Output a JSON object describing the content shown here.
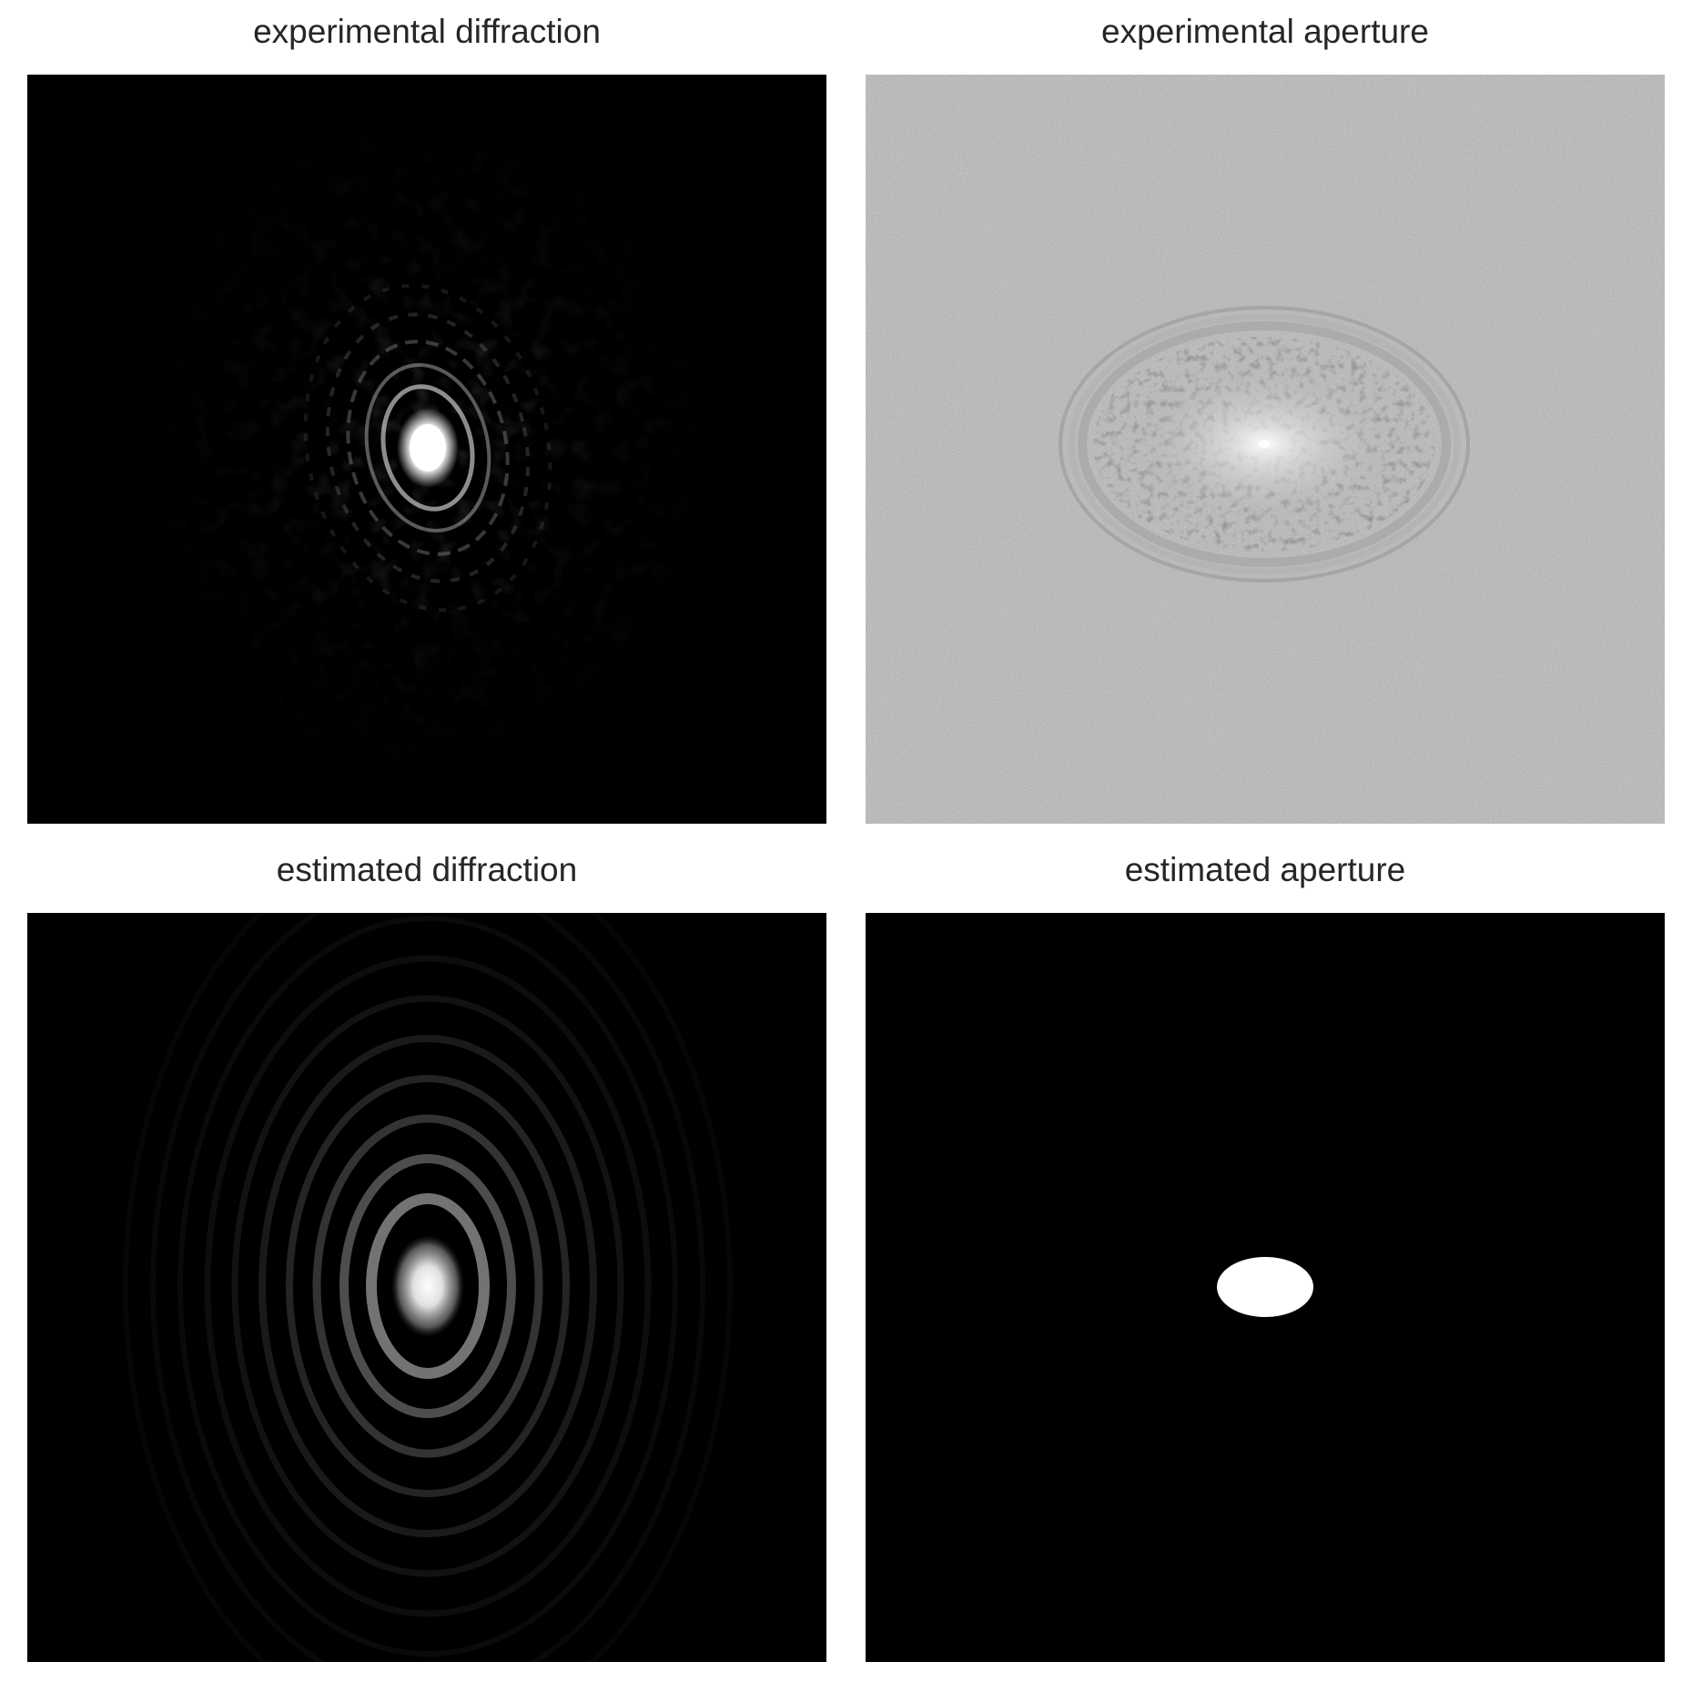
{
  "panels": {
    "top_left": {
      "title": "experimental diffraction"
    },
    "top_right": {
      "title": "experimental aperture"
    },
    "bottom_left": {
      "title": "estimated diffraction"
    },
    "bottom_right": {
      "title": "estimated aperture"
    }
  },
  "colors": {
    "background": "#ffffff",
    "title_text": "#262626",
    "image_black": "#000000",
    "aperture_gray": "#8c8c8c",
    "highlight_white": "#ffffff"
  }
}
